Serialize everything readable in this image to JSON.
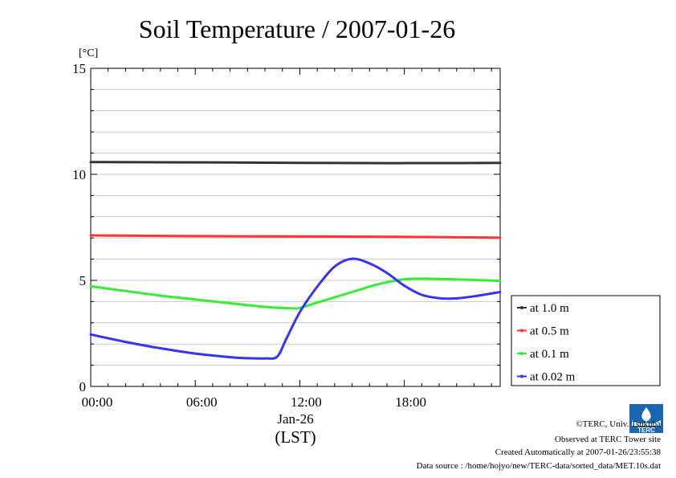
{
  "chart_data": {
    "type": "line",
    "title": "Soil Temperature / 2007-01-26",
    "ylabel": "[°C]",
    "xlabel": "(LST)",
    "date_label": "Jan-26",
    "ylim": [
      0,
      15
    ],
    "xlim": [
      0,
      23.5
    ],
    "yticks": [
      0,
      5,
      10,
      15
    ],
    "ytick_labels": [
      "0",
      "5",
      "10",
      "15"
    ],
    "xticks": [
      0,
      6,
      12,
      18
    ],
    "xtick_labels": [
      "00:00",
      "06:00",
      "12:00",
      "18:00"
    ],
    "grid": "horizontal",
    "legend_position": "right",
    "series": [
      {
        "name": "at 1.0 m",
        "color": "#333333",
        "x": [
          0,
          4,
          8,
          12,
          16,
          20,
          23.5
        ],
        "y": [
          10.58,
          10.57,
          10.56,
          10.54,
          10.53,
          10.53,
          10.54
        ]
      },
      {
        "name": "at 0.5 m",
        "color": "#ff3333",
        "x": [
          0,
          4,
          8,
          12,
          16,
          20,
          23.5
        ],
        "y": [
          7.12,
          7.1,
          7.08,
          7.07,
          7.06,
          7.04,
          7.01
        ]
      },
      {
        "name": "at 0.1 m",
        "color": "#33ee33",
        "x": [
          0,
          2,
          4,
          6,
          8,
          10,
          11.5,
          12,
          13,
          15,
          16.5,
          18,
          19,
          20,
          22,
          23.5
        ],
        "y": [
          4.72,
          4.5,
          4.28,
          4.1,
          3.92,
          3.75,
          3.68,
          3.7,
          3.95,
          4.45,
          4.82,
          5.05,
          5.08,
          5.07,
          5.02,
          4.98
        ]
      },
      {
        "name": "at 0.02 m",
        "color": "#3333ff",
        "x": [
          0,
          2,
          4,
          6,
          8,
          9,
          10,
          10.7,
          11.2,
          12,
          13,
          14,
          15,
          16,
          17,
          18,
          19,
          20,
          21,
          22,
          23.5
        ],
        "y": [
          2.45,
          2.1,
          1.8,
          1.55,
          1.38,
          1.33,
          1.32,
          1.4,
          2.2,
          3.5,
          4.7,
          5.65,
          6.02,
          5.8,
          5.35,
          4.75,
          4.32,
          4.16,
          4.15,
          4.25,
          4.45
        ]
      }
    ]
  },
  "credits": {
    "copyright": "©TERC, Univ. Tsukuba",
    "observed": "Observed at TERC Tower site",
    "created": "Created Automatically at 2007-01-26/23:55:38",
    "source": "Data source : /home/hojyo/new/TERC-data/sorted_data/MET.10s.dat"
  },
  "logo": {
    "text": "TERC",
    "color": "#1a66b3"
  }
}
